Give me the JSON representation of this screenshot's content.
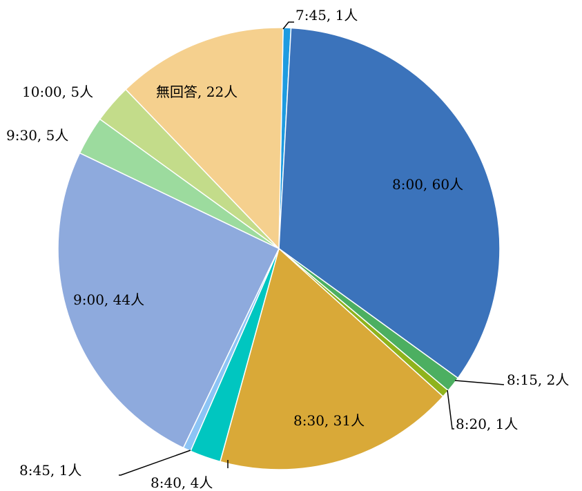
{
  "chart_data": {
    "type": "pie",
    "title": "",
    "start_angle_deg": 0,
    "direction": "clockwise",
    "slices": [
      {
        "label": "7:45, 1人",
        "category": "7:45",
        "value": 1,
        "color": "#1e9be0"
      },
      {
        "label": "8:00, 60人",
        "category": "8:00",
        "value": 60,
        "color": "#3b73bb"
      },
      {
        "label": "8:15, 2人",
        "category": "8:15",
        "value": 2,
        "color": "#4caf61"
      },
      {
        "label": "8:20, 1人",
        "category": "8:20",
        "value": 1,
        "color": "#8fb31c"
      },
      {
        "label": "8:30, 31人",
        "category": "8:30",
        "value": 31,
        "color": "#d9a938"
      },
      {
        "label": "8:40, 4人",
        "category": "8:40",
        "value": 4,
        "color": "#00c6c0"
      },
      {
        "label": "8:45, 1人",
        "category": "8:45",
        "value": 1,
        "color": "#8cc4f5"
      },
      {
        "label": "9:00, 44人",
        "category": "9:00",
        "value": 44,
        "color": "#8eaadd"
      },
      {
        "label": "9:30, 5人",
        "category": "9:30",
        "value": 5,
        "color": "#9cdb9e"
      },
      {
        "label": "10:00, 5人",
        "category": "10:00",
        "value": 5,
        "color": "#c3dc8a"
      },
      {
        "label": "無回答, 22人",
        "category": "無回答",
        "value": 22,
        "color": "#f5d08e"
      }
    ]
  }
}
